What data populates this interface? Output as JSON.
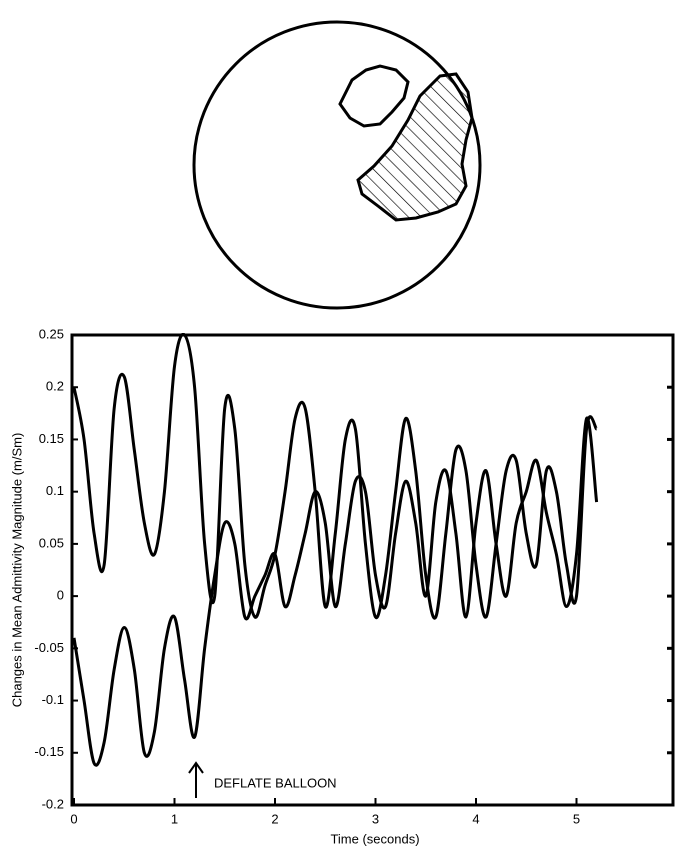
{
  "chart_data": {
    "type": "line",
    "x_label": "Time (seconds)",
    "y_label": "Changes in Mean Admittivity Magnitude (m/Sm)",
    "annotation": "DEFLATE BALLOON",
    "x": [
      0,
      0.1,
      0.2,
      0.3,
      0.4,
      0.5,
      0.6,
      0.7,
      0.8,
      0.9,
      1,
      1.1,
      1.2,
      1.3,
      1.4,
      1.5,
      1.6,
      1.7,
      1.8,
      1.9,
      2,
      2.1,
      2.2,
      2.3,
      2.4,
      2.5,
      2.6,
      2.7,
      2.8,
      2.9,
      3,
      3.1,
      3.2,
      3.3,
      3.4,
      3.5,
      3.6,
      3.7,
      3.8,
      3.9,
      4,
      4.1,
      4.2,
      4.3,
      4.4,
      4.5,
      4.6,
      4.7,
      4.8,
      4.9,
      5,
      5.1,
      5.2
    ],
    "series": [
      {
        "color": "#000000",
        "values": [
          0.2,
          0.15,
          0.06,
          0.03,
          0.18,
          0.21,
          0.14,
          0.07,
          0.04,
          0.1,
          0.22,
          0.25,
          0.2,
          0.05,
          0,
          0.18,
          0.16,
          0.03,
          -0.02,
          0.01,
          0.04,
          0.1,
          0.17,
          0.18,
          0.1,
          -0.01,
          0.06,
          0.15,
          0.16,
          0.05,
          -0.02,
          0.02,
          0.1,
          0.17,
          0.12,
          0.02,
          -0.02,
          0.06,
          0.14,
          0.12,
          0.03,
          -0.02,
          0.05,
          0.12,
          0.13,
          0.06,
          0.03,
          0.12,
          0.1,
          0.03,
          0,
          0.16,
          0.16
        ]
      },
      {
        "color": "#000000",
        "values": [
          -0.04,
          -0.1,
          -0.16,
          -0.14,
          -0.07,
          -0.03,
          -0.07,
          -0.15,
          -0.13,
          -0.05,
          -0.02,
          -0.08,
          -0.135,
          -0.05,
          0.02,
          0.07,
          0.05,
          -0.02,
          0,
          0.02,
          0.04,
          -0.01,
          0.02,
          0.06,
          0.1,
          0.07,
          -0.01,
          0.05,
          0.11,
          0.1,
          0.02,
          -0.01,
          0.06,
          0.11,
          0.07,
          0,
          0.09,
          0.12,
          0.06,
          -0.02,
          0.07,
          0.12,
          0.05,
          0,
          0.07,
          0.1,
          0.13,
          0.08,
          0.04,
          -0.01,
          0.04,
          0.17,
          0.09
        ]
      }
    ],
    "xlim": [
      0,
      6
    ],
    "ylim": [
      -0.2,
      0.25
    ],
    "xticks": [
      0,
      1,
      2,
      3,
      4,
      5
    ],
    "yticks": [
      0.25,
      0.2,
      0.15,
      0.1,
      0.05,
      0,
      -0.05,
      -0.1,
      -0.15,
      -0.2
    ]
  }
}
